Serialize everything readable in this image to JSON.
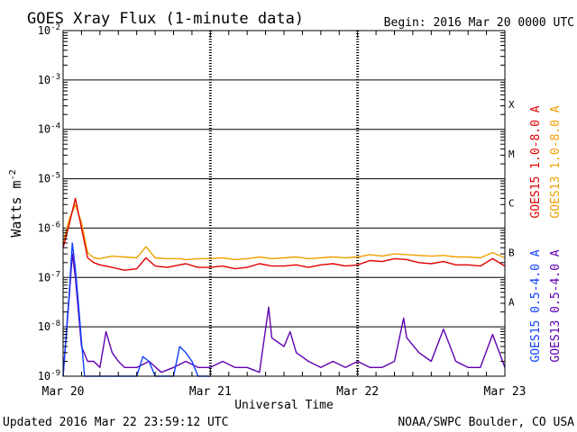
{
  "chart_data": {
    "type": "line",
    "title": "GOES Xray Flux (1-minute data)",
    "begin_label": "Begin:  2016 Mar 20 0000 UTC",
    "ylabel": "Watts m",
    "ylabel_exp": "-2",
    "xlabel": "Universal Time",
    "y_scale": "log",
    "ylim": [
      1e-09,
      0.01
    ],
    "xlim": [
      0,
      72
    ],
    "x_unit": "hours since begin",
    "grid": true,
    "y_ticks": [
      {
        "base": "10",
        "exp": "-2",
        "value": 0.01
      },
      {
        "base": "10",
        "exp": "-3",
        "value": 0.001
      },
      {
        "base": "10",
        "exp": "-4",
        "value": 0.0001
      },
      {
        "base": "10",
        "exp": "-5",
        "value": 1e-05
      },
      {
        "base": "10",
        "exp": "-6",
        "value": 1e-06
      },
      {
        "base": "10",
        "exp": "-7",
        "value": 1e-07
      },
      {
        "base": "10",
        "exp": "-8",
        "value": 1e-08
      },
      {
        "base": "10",
        "exp": "-9",
        "value": 1e-09
      }
    ],
    "x_ticks": [
      {
        "label": "Mar 20",
        "value": 0
      },
      {
        "label": "Mar 21",
        "value": 24
      },
      {
        "label": "Mar 22",
        "value": 48
      },
      {
        "label": "Mar 23",
        "value": 72
      }
    ],
    "flare_classes": [
      {
        "label": "X",
        "value": 0.00032
      },
      {
        "label": "M",
        "value": 3.2e-05
      },
      {
        "label": "C",
        "value": 3.2e-06
      },
      {
        "label": "B",
        "value": 3.2e-07
      },
      {
        "label": "A",
        "value": 3.2e-08
      }
    ],
    "series": [
      {
        "name": "GOES15 1.0-8.0 A",
        "color": "#e00000",
        "x": [
          0,
          1,
          2,
          3,
          4,
          5,
          6,
          8,
          10,
          12,
          13.5,
          15,
          17,
          19,
          20,
          22,
          24,
          26,
          28,
          30,
          32,
          34,
          36,
          38,
          40,
          42,
          44,
          46,
          48,
          50,
          52,
          54,
          56,
          58,
          60,
          62,
          64,
          66,
          68,
          70,
          72
        ],
        "y": [
          4e-07,
          1.2e-06,
          4e-06,
          1e-06,
          2.5e-07,
          2e-07,
          1.8e-07,
          1.6e-07,
          1.4e-07,
          1.5e-07,
          2.5e-07,
          1.7e-07,
          1.6e-07,
          1.8e-07,
          1.9e-07,
          1.6e-07,
          1.6e-07,
          1.7e-07,
          1.5e-07,
          1.6e-07,
          1.9e-07,
          1.7e-07,
          1.7e-07,
          1.8e-07,
          1.6e-07,
          1.8e-07,
          1.9e-07,
          1.7e-07,
          1.8e-07,
          2.2e-07,
          2.1e-07,
          2.4e-07,
          2.3e-07,
          2e-07,
          1.9e-07,
          2.1e-07,
          1.8e-07,
          1.8e-07,
          1.7e-07,
          2.4e-07,
          1.7e-07
        ]
      },
      {
        "name": "GOES13 1.0-8.0 A",
        "color": "#f0a000",
        "x": [
          0,
          1,
          2,
          3,
          4,
          5,
          6,
          8,
          10,
          12,
          13.5,
          15,
          17,
          19,
          20,
          22,
          24,
          26,
          28,
          30,
          32,
          34,
          36,
          38,
          40,
          42,
          44,
          46,
          48,
          50,
          52,
          54,
          56,
          58,
          60,
          62,
          64,
          66,
          68,
          70,
          72
        ],
        "y": [
          5e-07,
          1.5e-06,
          3e-06,
          1.3e-06,
          3.2e-07,
          2.5e-07,
          2.4e-07,
          2.7e-07,
          2.6e-07,
          2.5e-07,
          4.2e-07,
          2.5e-07,
          2.4e-07,
          2.4e-07,
          2.3e-07,
          2.4e-07,
          2.4e-07,
          2.5e-07,
          2.3e-07,
          2.4e-07,
          2.6e-07,
          2.4e-07,
          2.5e-07,
          2.6e-07,
          2.4e-07,
          2.5e-07,
          2.6e-07,
          2.5e-07,
          2.6e-07,
          2.9e-07,
          2.7e-07,
          3e-07,
          2.9e-07,
          2.8e-07,
          2.7e-07,
          2.8e-07,
          2.6e-07,
          2.6e-07,
          2.5e-07,
          3.2e-07,
          2.5e-07
        ]
      },
      {
        "name": "GOES15 0.5-4.0 A",
        "color": "#1040ff",
        "x": [
          0,
          1,
          1.5,
          2,
          2.5,
          3,
          3.5,
          4,
          5,
          6,
          7,
          8,
          9,
          10,
          11,
          12,
          13,
          14,
          15,
          16,
          17,
          18,
          19,
          20,
          21,
          22,
          23,
          24
        ],
        "y": [
          1e-09,
          5e-08,
          5e-07,
          1.5e-07,
          3e-08,
          5e-09,
          1e-09,
          1e-09,
          1e-09,
          1e-09,
          1e-09,
          1e-09,
          1e-09,
          1e-09,
          1e-09,
          1e-09,
          2.5e-09,
          2e-09,
          1e-09,
          1e-09,
          1e-09,
          1e-09,
          4e-09,
          3e-09,
          2e-09,
          1e-09,
          1e-09,
          1e-09
        ]
      },
      {
        "name": "GOES13 0.5-4.0 A",
        "color": "#6000b0",
        "x": [
          0,
          1,
          1.5,
          2,
          2.5,
          3,
          4,
          5,
          6,
          7,
          8,
          9,
          10,
          12,
          14,
          16,
          18,
          20,
          22,
          24,
          26,
          28,
          30,
          32,
          33.5,
          34,
          36,
          37,
          38,
          40,
          42,
          44,
          46,
          48,
          50,
          52,
          54,
          55.5,
          56,
          58,
          60,
          62,
          64,
          66,
          68,
          70,
          72
        ],
        "y": [
          1e-09,
          4e-08,
          3e-07,
          1e-07,
          2e-08,
          4e-09,
          2e-09,
          2e-09,
          1.5e-09,
          8e-09,
          3e-09,
          2e-09,
          1.5e-09,
          1.5e-09,
          2e-09,
          1.2e-09,
          1.5e-09,
          2e-09,
          1.5e-09,
          1.5e-09,
          2e-09,
          1.5e-09,
          1.5e-09,
          1.2e-09,
          2.5e-08,
          6e-09,
          4e-09,
          8e-09,
          3e-09,
          2e-09,
          1.5e-09,
          2e-09,
          1.5e-09,
          2e-09,
          1.5e-09,
          1.5e-09,
          2e-09,
          1.5e-08,
          6e-09,
          3e-09,
          2e-09,
          9e-09,
          2e-09,
          1.5e-09,
          1.5e-09,
          7e-09,
          1.5e-09
        ]
      }
    ]
  },
  "footer": {
    "updated": "Updated 2016 Mar 22 23:59:12 UTC",
    "credit": "NOAA/SWPC Boulder, CO USA"
  }
}
